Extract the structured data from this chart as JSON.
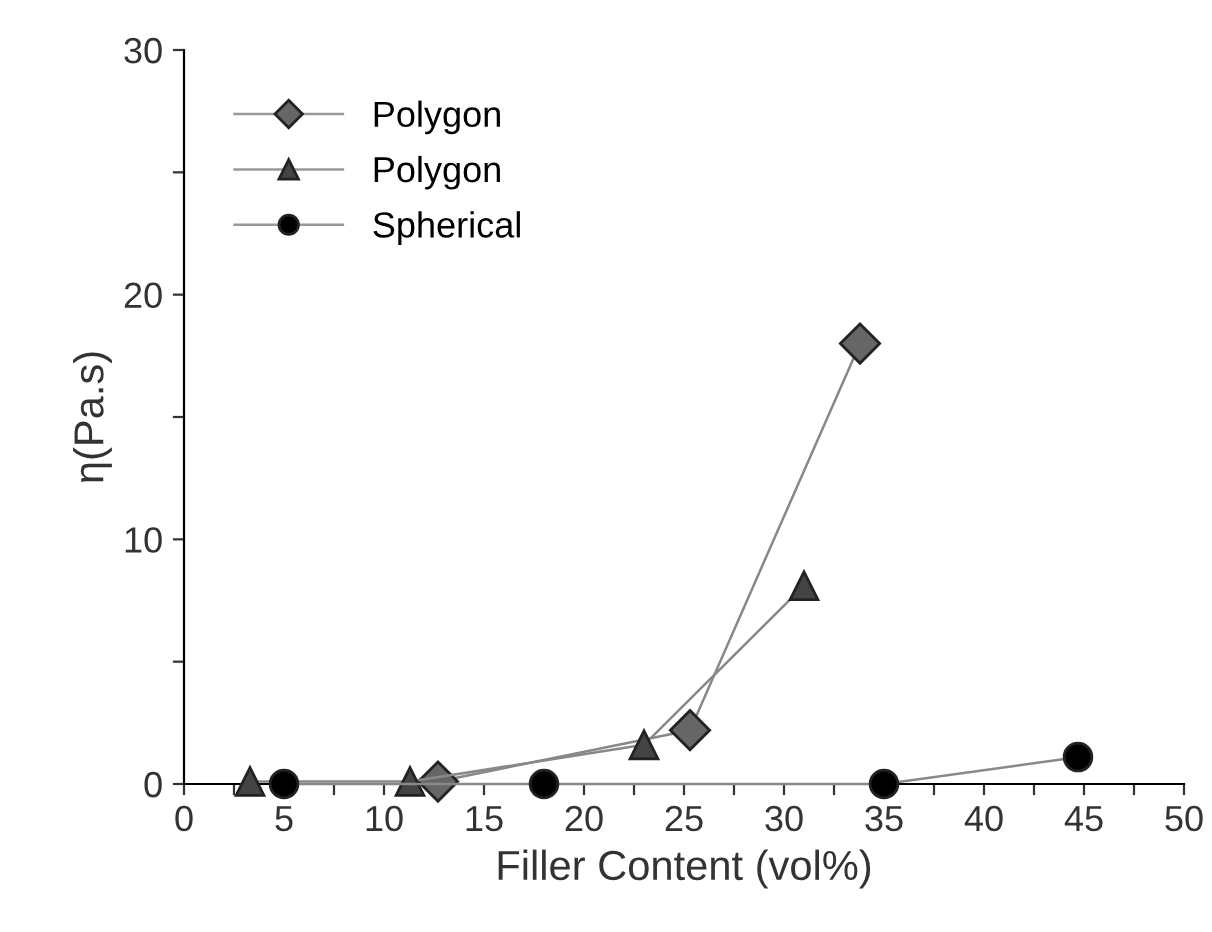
{
  "chart_data": {
    "type": "line",
    "xlabel": "Filler Content (vol%)",
    "ylabel": "η(Pa.s)",
    "xlim": [
      0,
      50
    ],
    "ylim": [
      0,
      30
    ],
    "xticks": [
      0,
      {
        "value": 2.5,
        "label": null
      },
      5,
      {
        "value": 7.5,
        "label": null
      },
      10,
      {
        "value": 12.5,
        "label": null
      },
      15,
      {
        "value": 17.5,
        "label": null
      },
      20,
      {
        "value": 22.5,
        "label": null
      },
      25,
      {
        "value": 27.5,
        "label": null
      },
      30,
      {
        "value": 32.5,
        "label": null
      },
      35,
      {
        "value": 37.5,
        "label": null
      },
      40,
      {
        "value": 42.5,
        "label": null
      },
      45,
      {
        "value": 47.5,
        "label": null
      },
      50
    ],
    "yticks": [
      0,
      {
        "value": 5,
        "label": null
      },
      10,
      {
        "value": 15,
        "label": null
      },
      20,
      {
        "value": 25,
        "label": null
      },
      30
    ],
    "grid": false,
    "legend": "top left",
    "series": [
      {
        "name": "Polygon",
        "color": "#666666",
        "marker": "diamond",
        "x": [
          12.7,
          25.3,
          33.8
        ],
        "values": [
          0.1,
          2.2,
          18
        ]
      },
      {
        "name": "Polygon",
        "color": "#444444",
        "marker": "triangle",
        "x": [
          3.3,
          11.3,
          23,
          31
        ],
        "values": [
          0.1,
          0.1,
          1.6,
          8.1
        ]
      },
      {
        "name": "Spherical",
        "color": "#000000",
        "marker": "circle",
        "x": [
          5,
          18,
          35,
          44.7
        ],
        "values": [
          0,
          0,
          0,
          1.1
        ]
      }
    ]
  }
}
